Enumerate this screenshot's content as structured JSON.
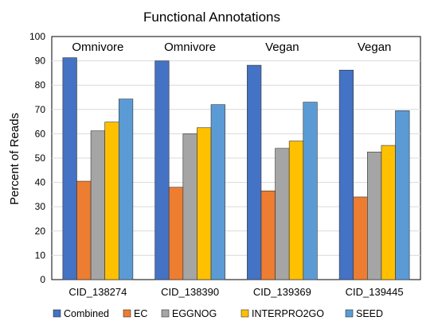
{
  "chart_data": {
    "type": "bar",
    "title": "Functional Annotations",
    "xlabel": "",
    "ylabel": "Percent of Reads",
    "ylim": [
      0,
      100
    ],
    "yticks": [
      0,
      10,
      20,
      30,
      40,
      50,
      60,
      70,
      80,
      90,
      100
    ],
    "grid": true,
    "legend_position": "bottom",
    "categories": [
      "CID_138274",
      "CID_138390",
      "CID_139369",
      "CID_139445"
    ],
    "group_labels": [
      "Omnivore",
      "Omnivore",
      "Vegan",
      "Vegan"
    ],
    "series": [
      {
        "name": "Combined",
        "color": "#4472c4",
        "values": [
          91.3,
          90.0,
          88.2,
          86.2
        ]
      },
      {
        "name": "EC",
        "color": "#ed7d31",
        "values": [
          40.5,
          38.0,
          36.5,
          34.0
        ]
      },
      {
        "name": "EGGNOG",
        "color": "#a5a5a5",
        "values": [
          61.2,
          60.0,
          54.0,
          52.5
        ]
      },
      {
        "name": "INTERPRO2GO",
        "color": "#ffc000",
        "values": [
          64.8,
          62.5,
          57.0,
          55.2
        ]
      },
      {
        "name": "SEED",
        "color": "#5b9bd5",
        "values": [
          74.3,
          72.0,
          73.0,
          69.5
        ]
      }
    ]
  }
}
